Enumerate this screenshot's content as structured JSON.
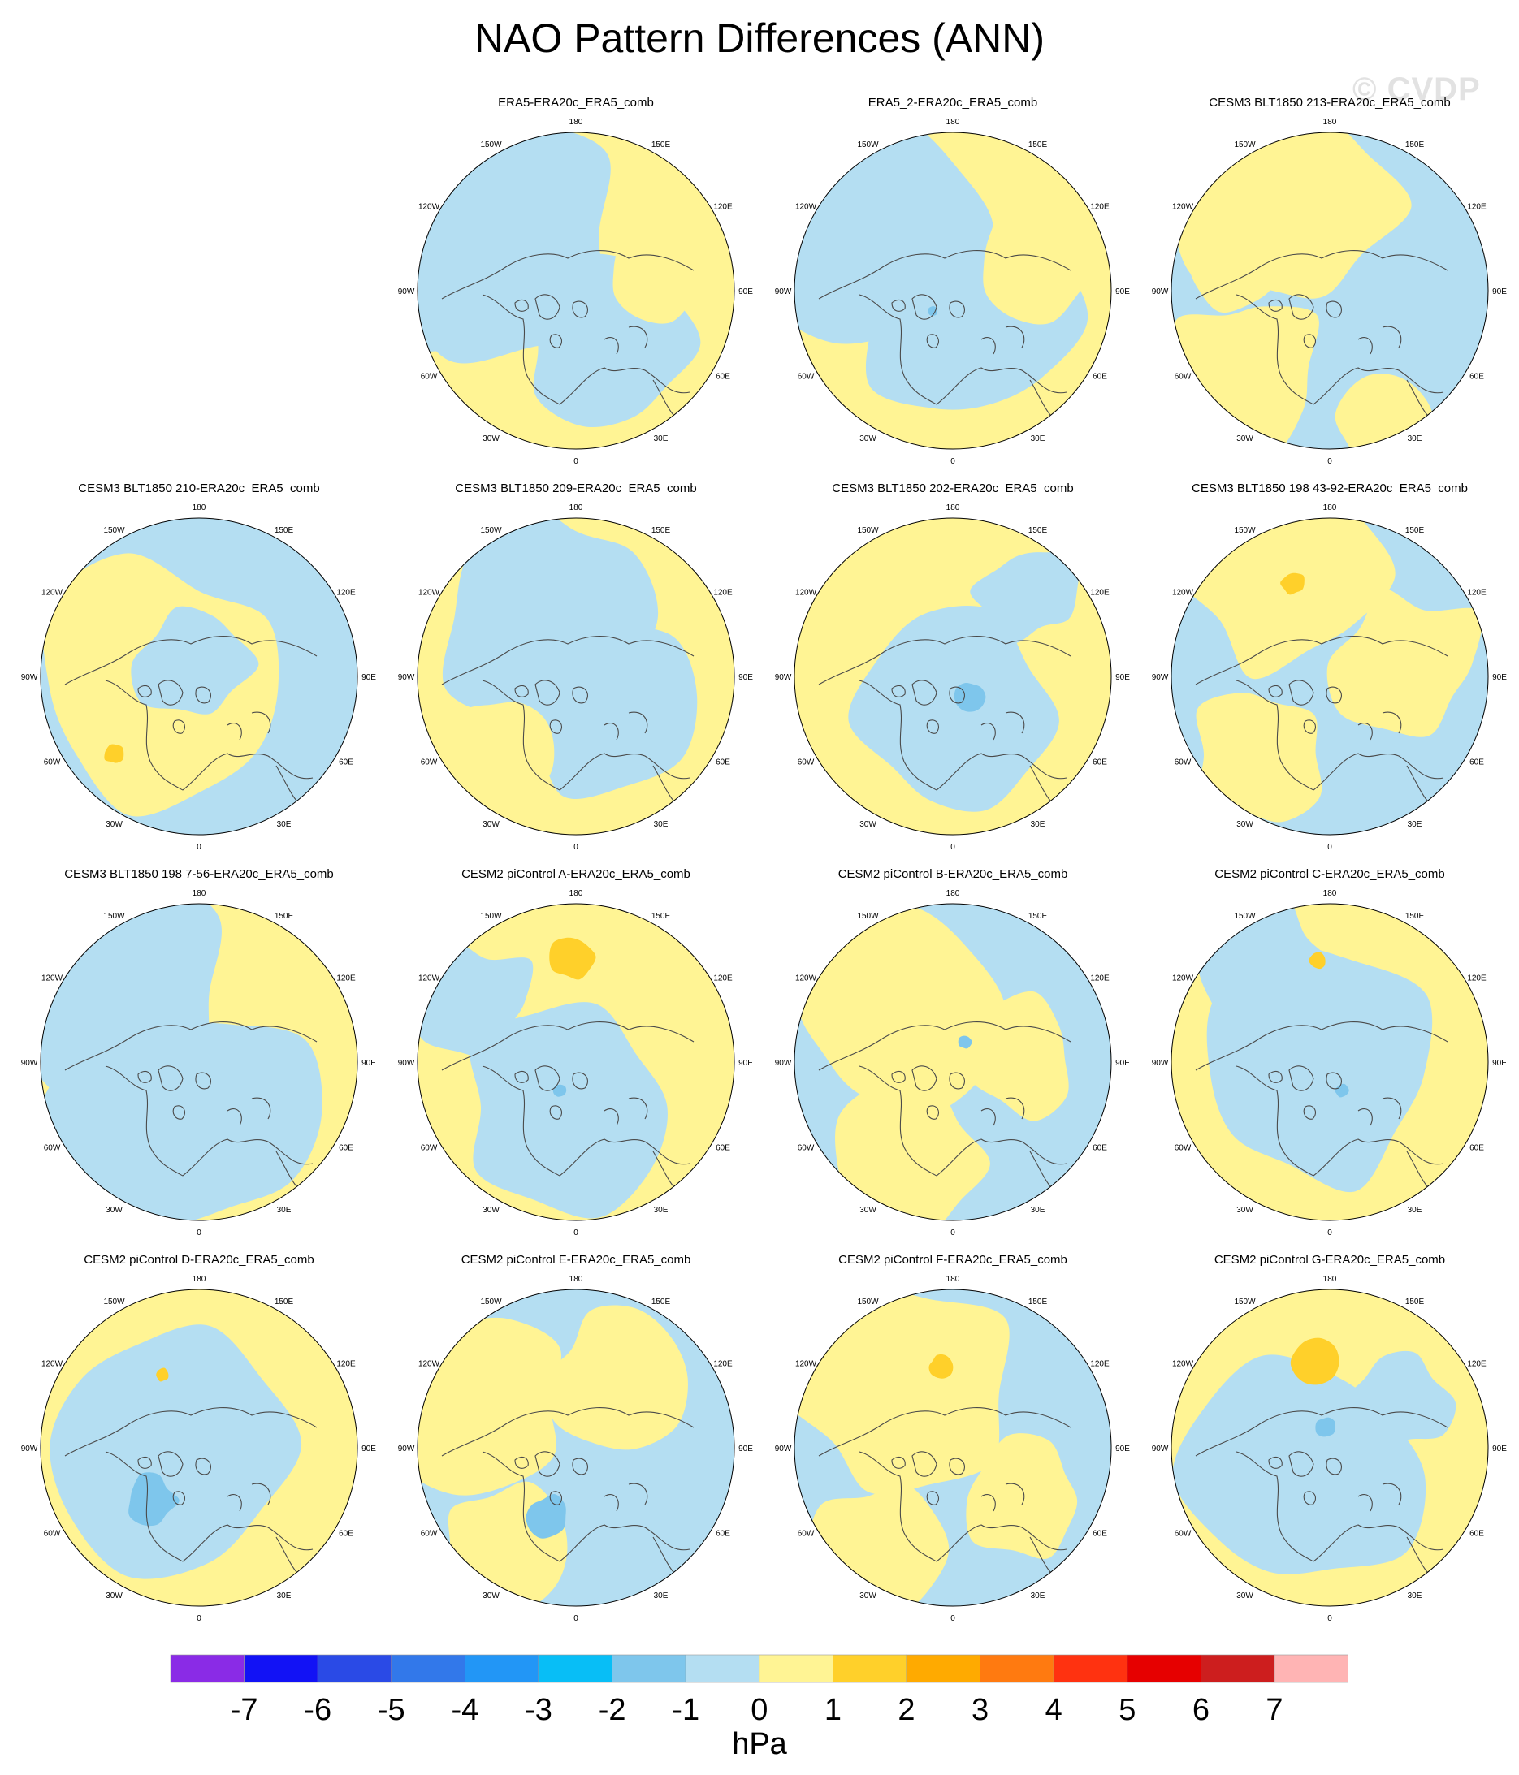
{
  "title": "NAO Pattern Differences (ANN)",
  "watermark": "© CVDP",
  "longitude_labels": [
    "180",
    "150E",
    "120E",
    "90E",
    "60E",
    "30E",
    "0",
    "30W",
    "60W",
    "90W",
    "120W",
    "150W"
  ],
  "colors": {
    "positive_weak": "#fff494",
    "positive_mid": "#ffd02a",
    "negative_weak": "#b4def2",
    "negative_mid": "#7ec6ec",
    "negative_strong": "#4aa6ea",
    "coastline": "#4a4a4a",
    "outline": "#000000"
  },
  "panels": [
    {
      "title": "ERA5-ERA20c_ERA5_comb",
      "row": 0,
      "col": 1,
      "pattern": 1
    },
    {
      "title": "ERA5_2-ERA20c_ERA5_comb",
      "row": 0,
      "col": 2,
      "pattern": 2
    },
    {
      "title": "CESM3 BLT1850 213-ERA20c_ERA5_comb",
      "row": 0,
      "col": 3,
      "pattern": 3
    },
    {
      "title": "CESM3 BLT1850 210-ERA20c_ERA5_comb",
      "row": 1,
      "col": 0,
      "pattern": 4
    },
    {
      "title": "CESM3 BLT1850 209-ERA20c_ERA5_comb",
      "row": 1,
      "col": 1,
      "pattern": 5
    },
    {
      "title": "CESM3 BLT1850 202-ERA20c_ERA5_comb",
      "row": 1,
      "col": 2,
      "pattern": 6
    },
    {
      "title": "CESM3 BLT1850 198 43-92-ERA20c_ERA5_comb",
      "row": 1,
      "col": 3,
      "pattern": 7
    },
    {
      "title": "CESM3 BLT1850 198 7-56-ERA20c_ERA5_comb",
      "row": 2,
      "col": 0,
      "pattern": 8
    },
    {
      "title": "CESM2 piControl A-ERA20c_ERA5_comb",
      "row": 2,
      "col": 1,
      "pattern": 9
    },
    {
      "title": "CESM2 piControl B-ERA20c_ERA5_comb",
      "row": 2,
      "col": 2,
      "pattern": 10
    },
    {
      "title": "CESM2 piControl C-ERA20c_ERA5_comb",
      "row": 2,
      "col": 3,
      "pattern": 11
    },
    {
      "title": "CESM2 piControl D-ERA20c_ERA5_comb",
      "row": 3,
      "col": 0,
      "pattern": 12
    },
    {
      "title": "CESM2 piControl E-ERA20c_ERA5_comb",
      "row": 3,
      "col": 1,
      "pattern": 13
    },
    {
      "title": "CESM2 piControl F-ERA20c_ERA5_comb",
      "row": 3,
      "col": 2,
      "pattern": 14
    },
    {
      "title": "CESM2 piControl G-ERA20c_ERA5_comb",
      "row": 3,
      "col": 3,
      "pattern": 15
    }
  ],
  "colorbar": {
    "units": "hPa",
    "labels": [
      "-7",
      "-6",
      "-5",
      "-4",
      "-3",
      "-2",
      "-1",
      "0",
      "1",
      "2",
      "3",
      "4",
      "5",
      "6",
      "7"
    ],
    "colors": [
      "#8a2be6",
      "#1212f5",
      "#2a4ae6",
      "#3278ea",
      "#2296f6",
      "#08bef6",
      "#7ec6ec",
      "#b4def2",
      "#fff494",
      "#ffd02a",
      "#ffaa00",
      "#ff7a10",
      "#ff3210",
      "#e60000",
      "#cd1e1e",
      "#ffb4b4"
    ]
  }
}
